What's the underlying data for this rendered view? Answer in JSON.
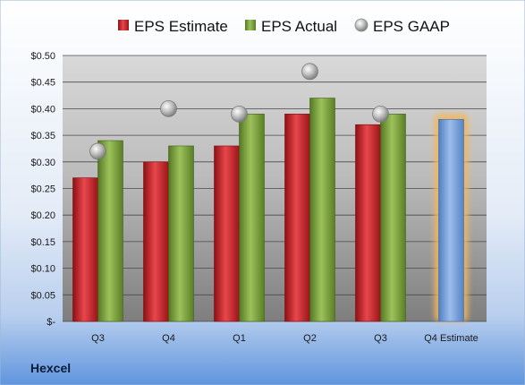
{
  "company": "Hexcel",
  "colors": {
    "estimate": "#c0272d",
    "actual": "#79a13a",
    "forecast": "#6f9ad3",
    "gaap": "#a8a8a8",
    "highlight": "#f5b65a"
  },
  "chart_data": {
    "type": "bar",
    "categories": [
      "Q3",
      "Q4",
      "Q1",
      "Q2",
      "Q3",
      "Q4 Estimate"
    ],
    "series": [
      {
        "name": "EPS Estimate",
        "values": [
          0.27,
          0.3,
          0.33,
          0.39,
          0.37,
          0.38
        ]
      },
      {
        "name": "EPS Actual",
        "values": [
          0.34,
          0.33,
          0.39,
          0.42,
          0.39,
          null
        ]
      },
      {
        "name": "EPS GAAP",
        "values": [
          0.32,
          0.4,
          0.39,
          0.47,
          0.39,
          null
        ]
      }
    ],
    "ylim": [
      0,
      0.5
    ],
    "y_ticks": [
      "$-",
      "$0.05",
      "$0.10",
      "$0.15",
      "$0.20",
      "$0.25",
      "$0.30",
      "$0.35",
      "$0.40",
      "$0.45",
      "$0.50"
    ],
    "legend": {
      "placement": "top",
      "entries": [
        "EPS Estimate",
        "EPS Actual",
        "EPS GAAP"
      ]
    },
    "grid": true
  }
}
